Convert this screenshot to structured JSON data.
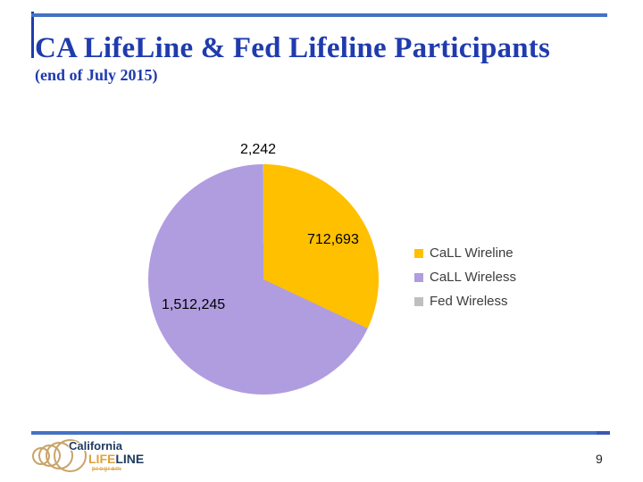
{
  "slide": {
    "title": "CA LifeLine & Fed Lifeline Participants",
    "subtitle": "(end of July 2015)",
    "page_number": "9"
  },
  "colors": {
    "title_blue": "#1F3BAE",
    "rule_blue": "#4472C4",
    "rule_tip": "#3A57B5",
    "legend_text": "#3D3D3D",
    "data_label_text": "#000000",
    "logo_navy": "#1F3A5F",
    "logo_gold": "#DFA13C",
    "logo_ring": "#C9A469"
  },
  "chart_data": {
    "type": "pie",
    "title": "",
    "legend_position": "right",
    "start_angle_deg": 0,
    "direction": "clockwise",
    "slices": [
      {
        "label": "CaLL Wireline",
        "value": 712693,
        "formatted": "712,693",
        "color": "#FFC000"
      },
      {
        "label": "CaLL Wireless",
        "value": 1512245,
        "formatted": "1,512,245",
        "color": "#B09DE0"
      },
      {
        "label": "Fed Wireless",
        "value": 2242,
        "formatted": "2,242",
        "color": "#BFBFBF"
      }
    ]
  },
  "logo": {
    "line1": "California",
    "line2_part1": "LIFE",
    "line2_part2": "LINE",
    "line3": "program"
  }
}
